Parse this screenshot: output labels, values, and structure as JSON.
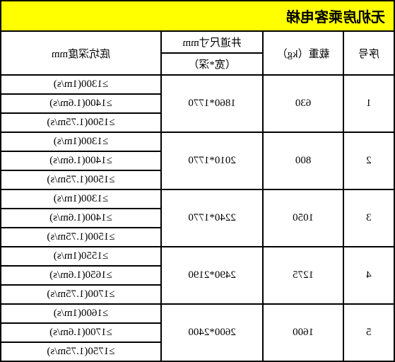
{
  "title": "无机房乘客电梯",
  "headers": {
    "index": "序号",
    "load": "载重（kg）",
    "dimensions_top": "井道尺寸mm",
    "dimensions_sub": "（宽*深）",
    "pit_depth": "底坑深度mm"
  },
  "rows": [
    {
      "index": "1",
      "load": "630",
      "dimensions": "1860*1770",
      "depths": [
        "≥1300(1m/s)",
        "≥1400(1.6m/s)",
        "≥1500(1.75m/s)"
      ]
    },
    {
      "index": "2",
      "load": "800",
      "dimensions": "2010*1770",
      "depths": [
        "≥1300(1m/s)",
        "≥1400(1.6m/s)",
        "≥1500(1.75m/s)"
      ]
    },
    {
      "index": "3",
      "load": "1050",
      "dimensions": "2240*1770",
      "depths": [
        "≥1300(1m/s)",
        "≥1400(1.6m/s)",
        "≥1500(1.75m/s)"
      ]
    },
    {
      "index": "4",
      "load": "1275",
      "dimensions": "2490*2190",
      "depths": [
        "≥1550(1m/s)",
        "≥1650(1.6m/s)",
        "≥1700(1.75m/s)"
      ]
    },
    {
      "index": "5",
      "load": "1600",
      "dimensions": "2600*2400",
      "depths": [
        "≥1600(1m/s)",
        "≥1700(1.6m/s)",
        "≥1750(1.75m/s)"
      ]
    }
  ],
  "colors": {
    "title_bg": "#ffff00",
    "border": "#000000",
    "background": "#ffffff",
    "text": "#000000"
  },
  "typography": {
    "title_fontsize": 20,
    "cell_fontsize": 15,
    "font_family": "SimSun"
  }
}
